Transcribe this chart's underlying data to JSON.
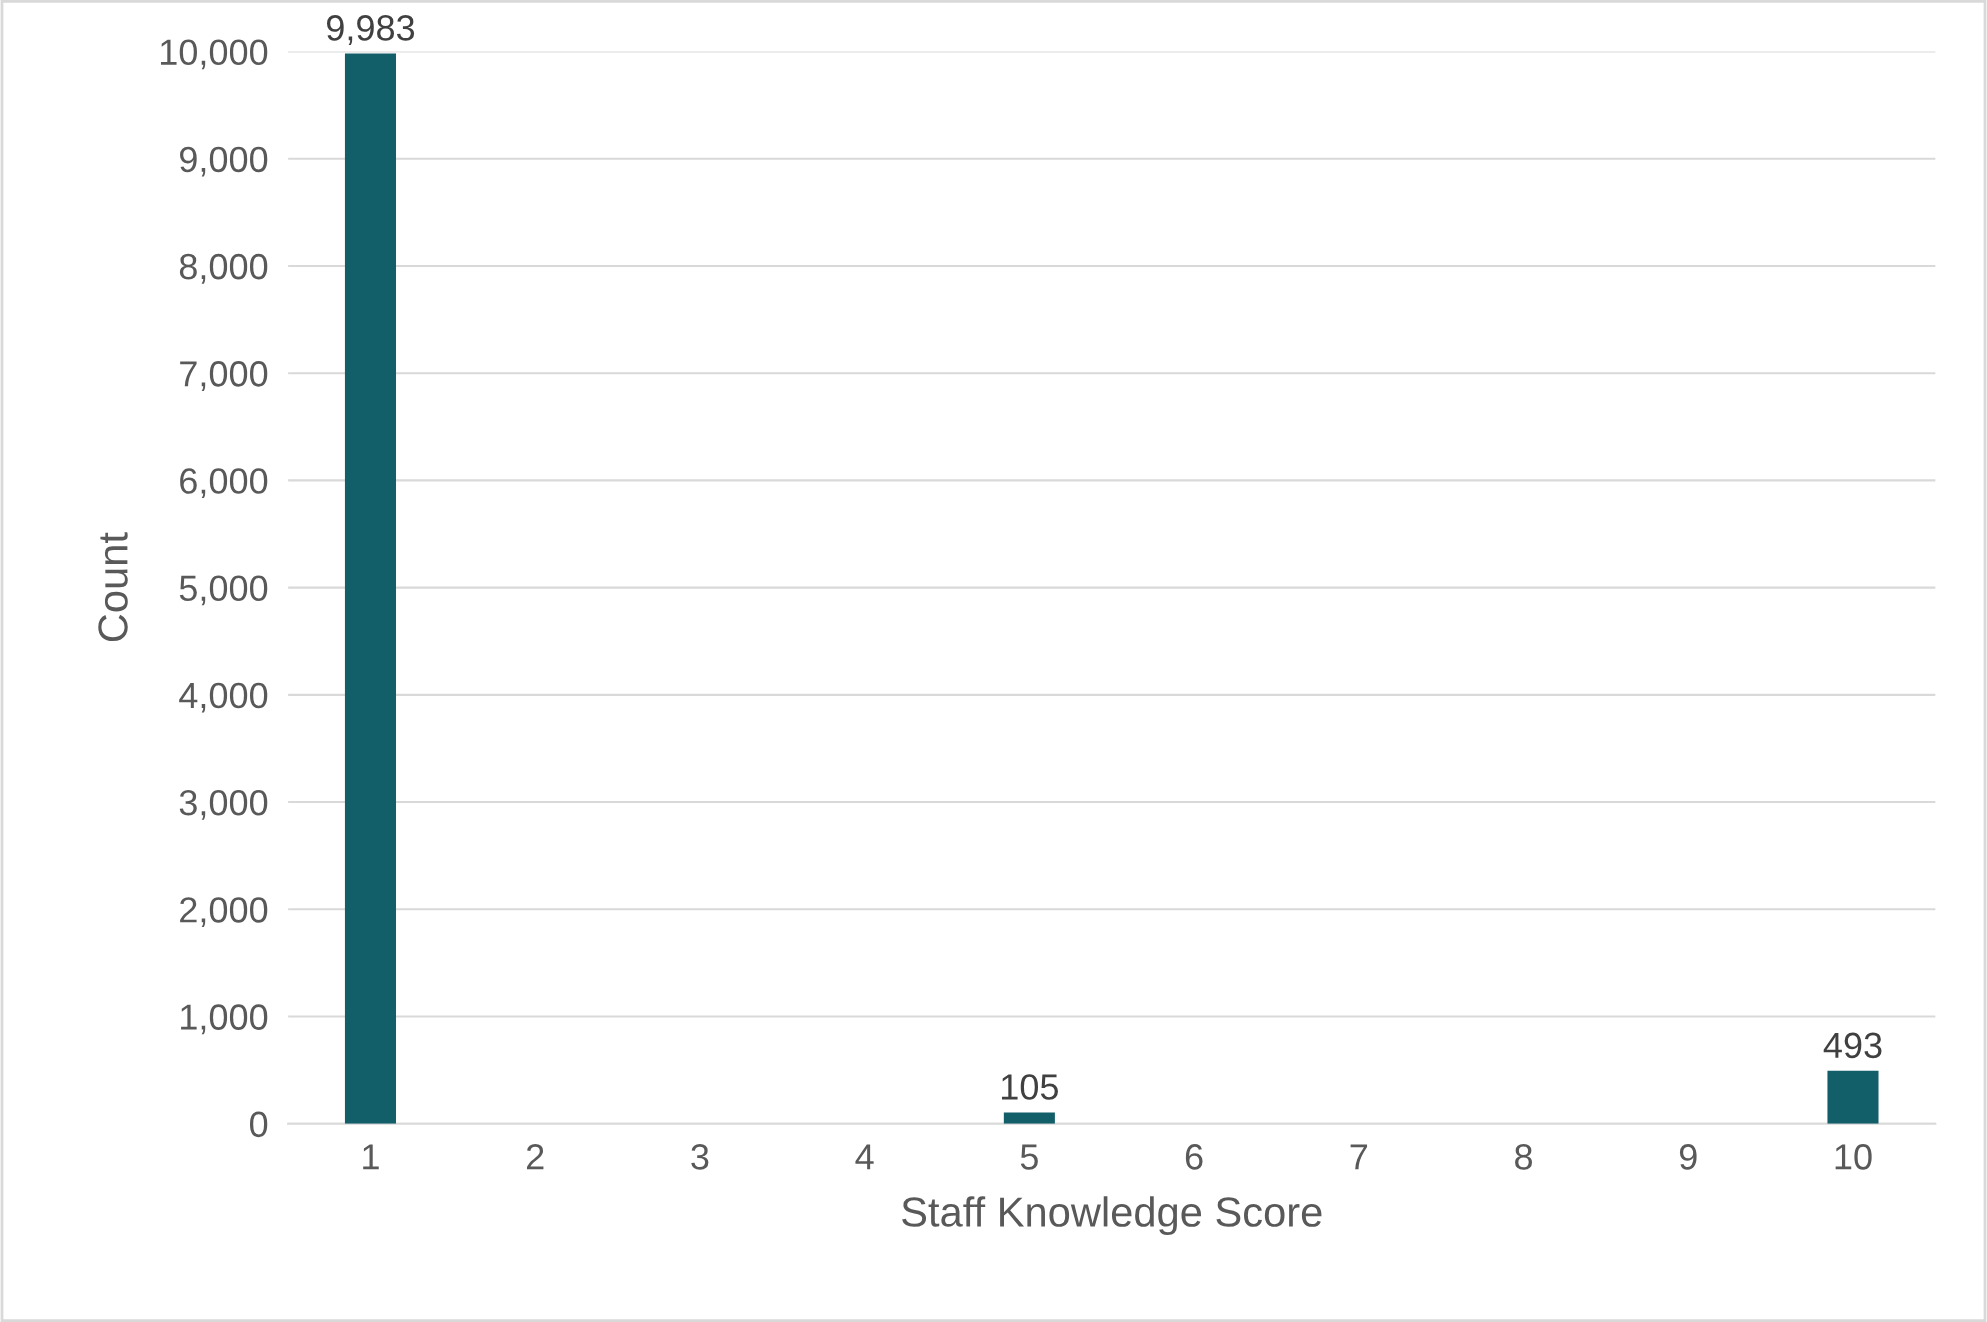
{
  "chart_data": {
    "type": "bar",
    "xlabel": "Staff Knowledge Score",
    "ylabel": "Count",
    "categories": [
      "1",
      "2",
      "3",
      "4",
      "5",
      "6",
      "7",
      "8",
      "9",
      "10"
    ],
    "values": [
      9983,
      0,
      0,
      0,
      105,
      0,
      0,
      0,
      0,
      493
    ],
    "value_labels": [
      "9,983",
      null,
      null,
      null,
      "105",
      null,
      null,
      null,
      null,
      "493"
    ],
    "color": "#125e69",
    "ylim": [
      0,
      10000
    ],
    "yticks": [
      {
        "value": 0,
        "label": "0"
      },
      {
        "value": 1000,
        "label": "1,000"
      },
      {
        "value": 2000,
        "label": "2,000"
      },
      {
        "value": 3000,
        "label": "3,000"
      },
      {
        "value": 4000,
        "label": "4,000"
      },
      {
        "value": 5000,
        "label": "5,000"
      },
      {
        "value": 6000,
        "label": "6,000"
      },
      {
        "value": 7000,
        "label": "7,000"
      },
      {
        "value": 8000,
        "label": "8,000"
      },
      {
        "value": 9000,
        "label": "9,000"
      },
      {
        "value": 10000,
        "label": "10,000"
      }
    ],
    "grid": "y",
    "legend": false
  }
}
